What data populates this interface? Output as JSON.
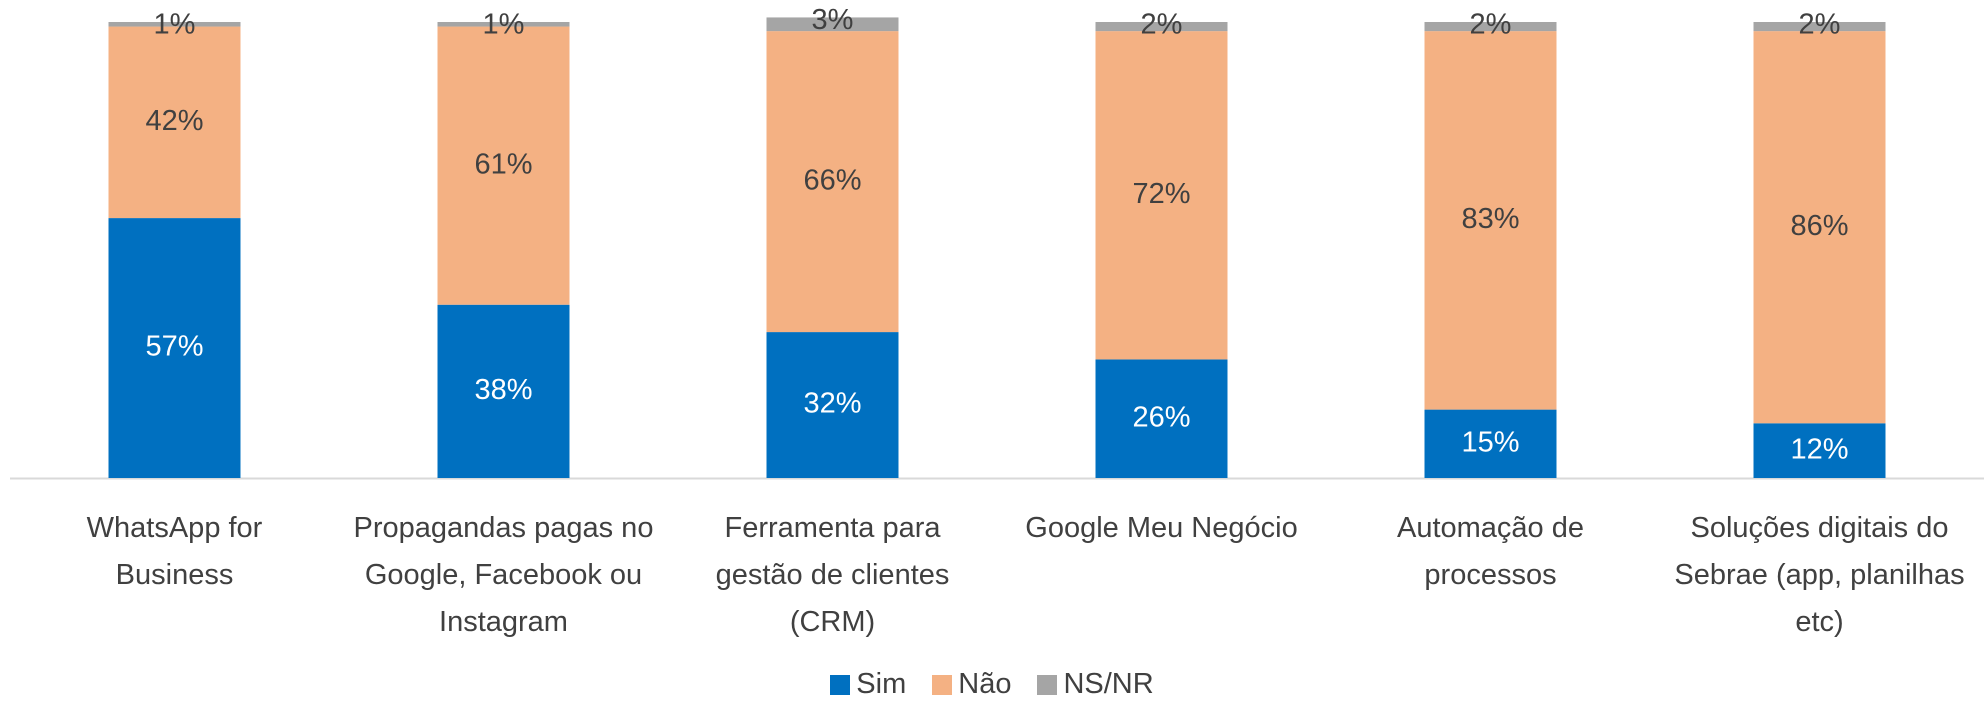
{
  "chart_data": {
    "type": "stacked_bar",
    "categories": [
      "WhatsApp for Business",
      "Propagandas pagas no Google, Facebook ou Instagram",
      "Ferramenta para gestão de clientes (CRM)",
      "Google Meu Negócio",
      "Automação de processos",
      "Soluções digitais do Sebrae (app, planilhas etc)"
    ],
    "series": [
      {
        "name": "Sim",
        "color": "#0070c0",
        "values": [
          57,
          38,
          32,
          26,
          15,
          12
        ],
        "value_labels": [
          "57%",
          "38%",
          "32%",
          "26%",
          "15%",
          "12%"
        ]
      },
      {
        "name": "Não",
        "color": "#f4b183",
        "values": [
          42,
          61,
          66,
          72,
          83,
          86
        ],
        "value_labels": [
          "42%",
          "61%",
          "66%",
          "72%",
          "83%",
          "86%"
        ]
      },
      {
        "name": "NS/NR",
        "color": "#a5a5a5",
        "values": [
          1,
          1,
          3,
          2,
          2,
          2
        ],
        "value_labels": [
          "1%",
          "1%",
          "3%",
          "2%",
          "2%",
          "2%"
        ]
      }
    ],
    "ylim": [
      0,
      100
    ],
    "legend": "bottom"
  }
}
